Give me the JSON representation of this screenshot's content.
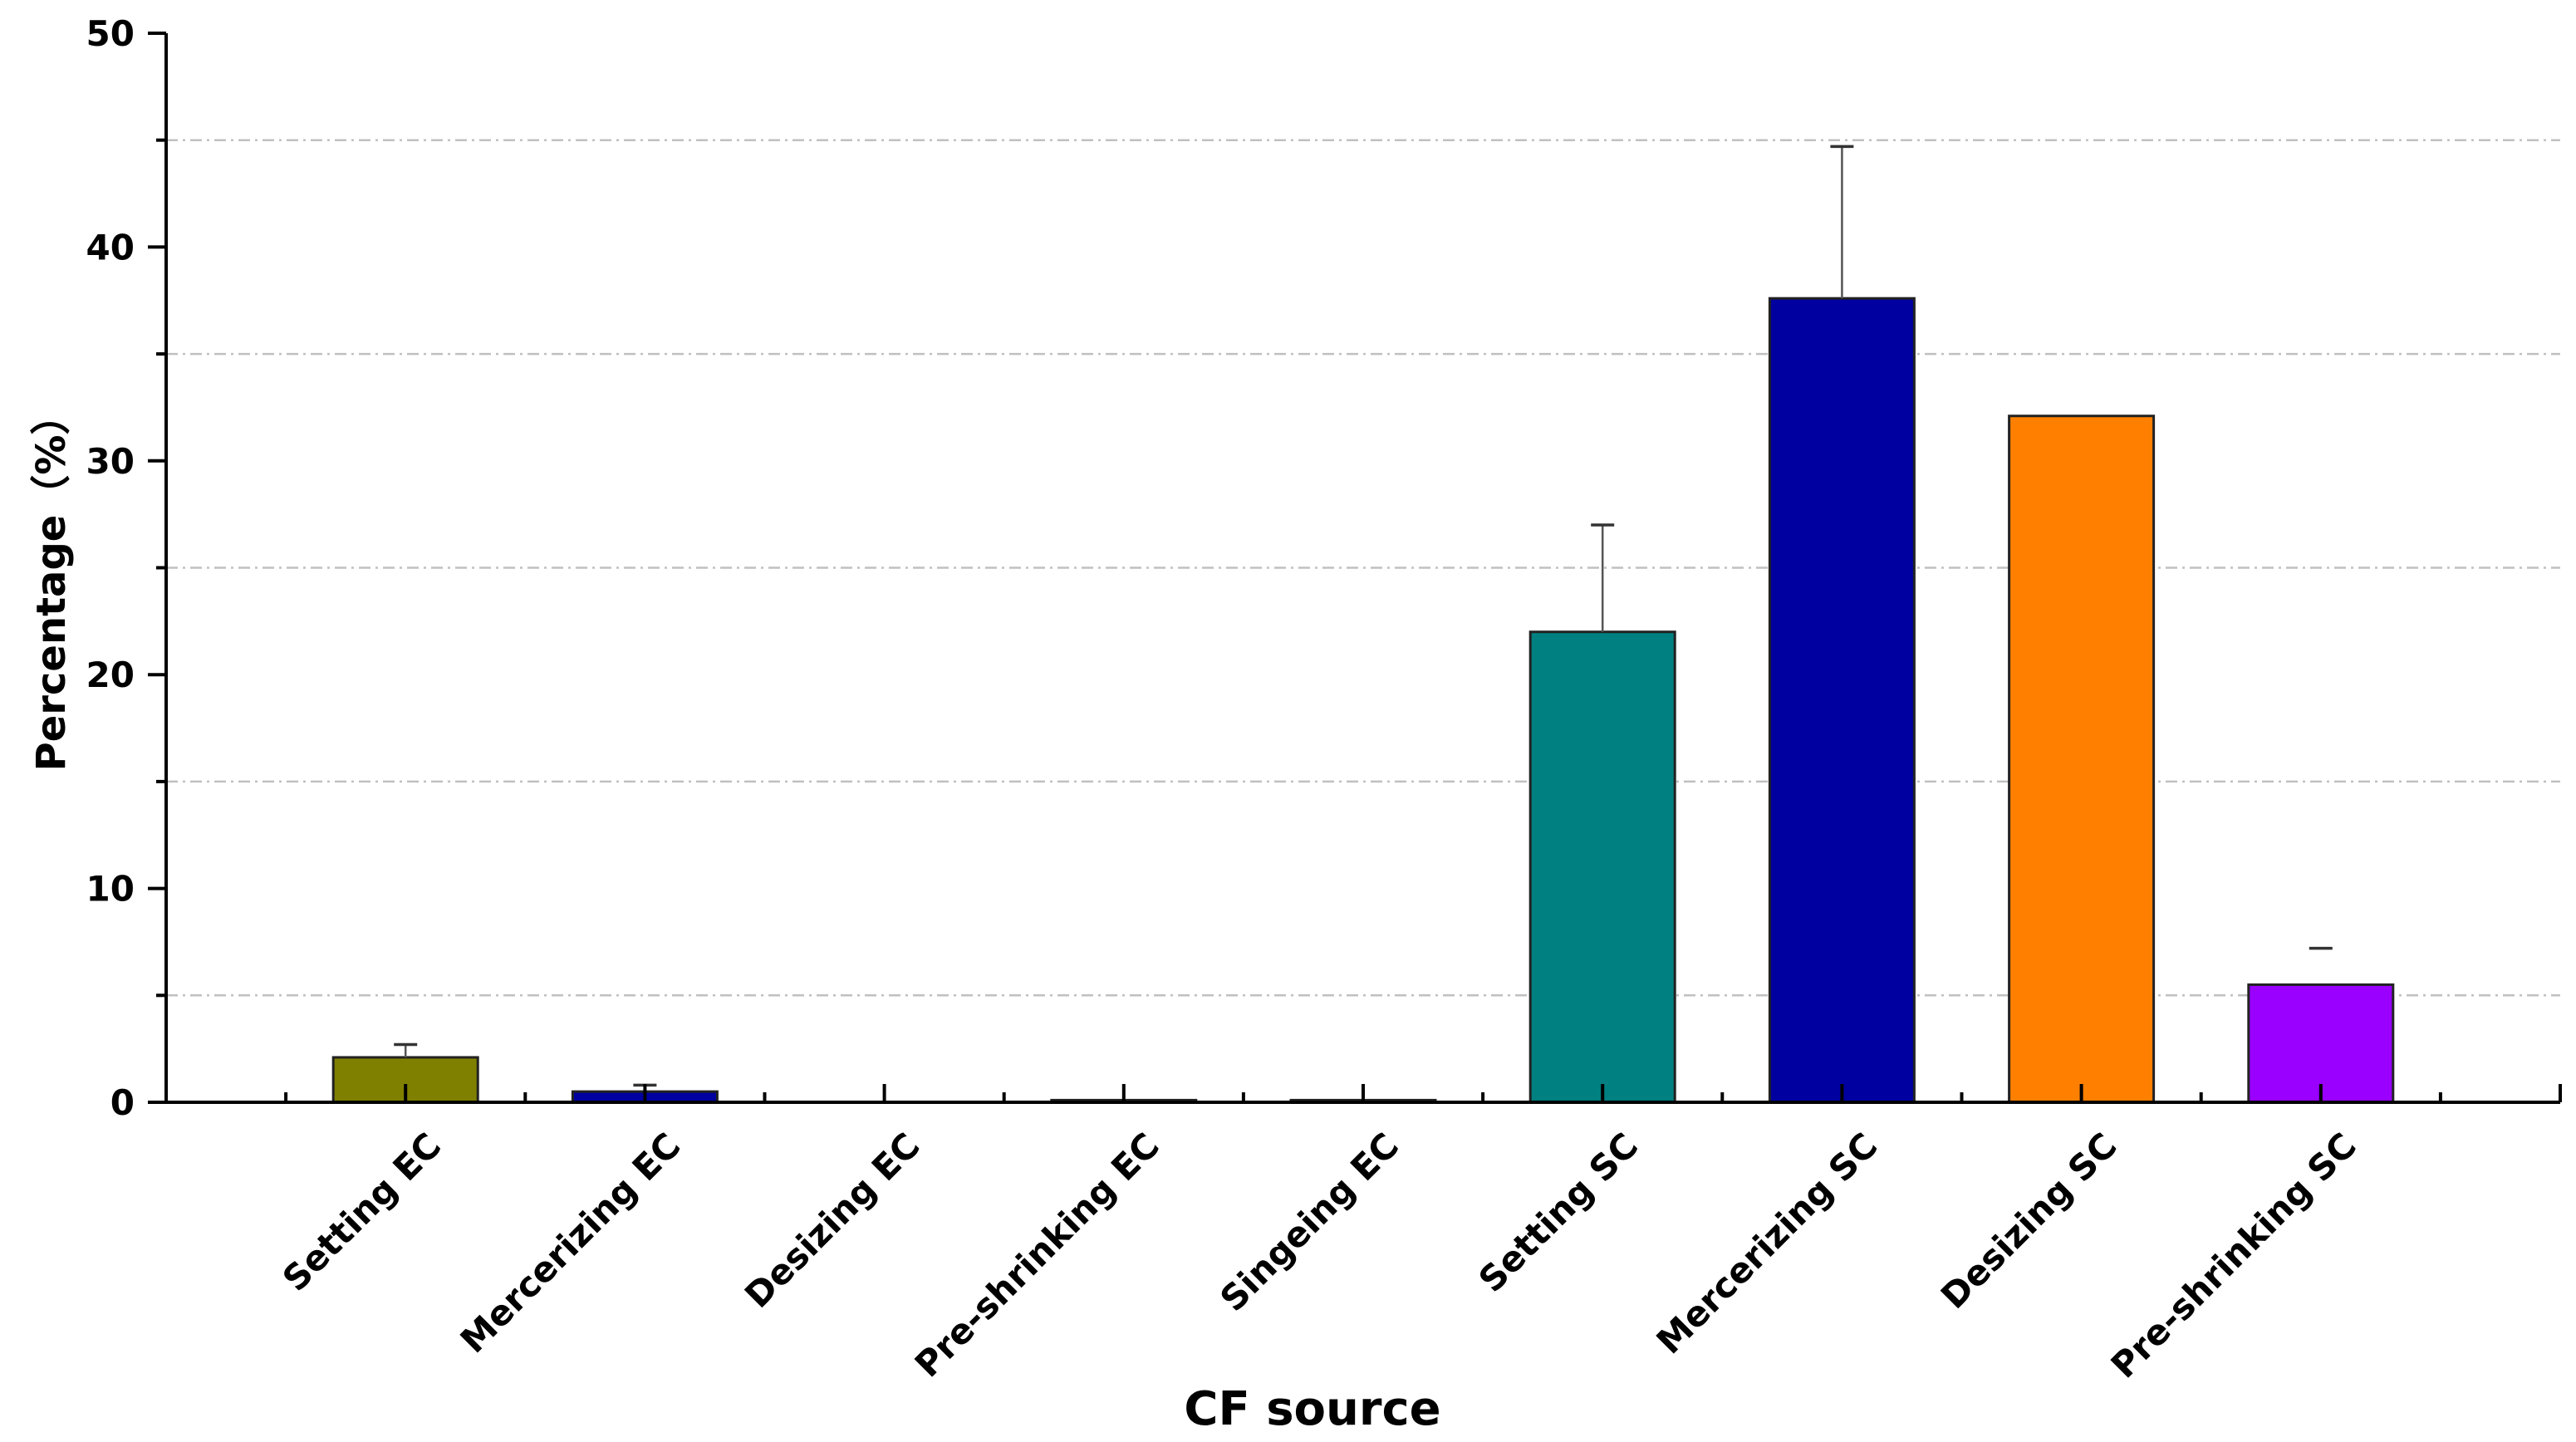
{
  "chart_data": {
    "type": "bar",
    "title": "",
    "xlabel": "CF source",
    "ylabel": "Percentage（%）",
    "ylim": [
      0,
      50
    ],
    "yticks": [
      0,
      10,
      20,
      30,
      40,
      50
    ],
    "grid": {
      "on": true,
      "style": "dash-dot",
      "values": [
        5,
        15,
        25,
        35,
        45
      ],
      "color": "#c0c0c0"
    },
    "legend": "none",
    "categories": [
      "Setting EC",
      "Mercerizing EC",
      "Desizing EC",
      "Pre-shrinking EC",
      "Singeing EC",
      "Setting SC",
      "Mercerizing SC",
      "Desizing SC",
      "Pre-shrinking SC"
    ],
    "values": [
      2.1,
      0.5,
      0.0,
      0.1,
      0.1,
      22.0,
      37.6,
      32.1,
      5.5
    ],
    "error_upper": [
      2.7,
      0.8,
      null,
      null,
      null,
      27.0,
      44.7,
      null,
      7.2
    ],
    "colors": [
      "#808000",
      "#0000A0",
      "#0000A0",
      "#0000A0",
      "#0000A0",
      "#008080",
      "#0000A0",
      "#FF8000",
      "#9900FF"
    ]
  }
}
